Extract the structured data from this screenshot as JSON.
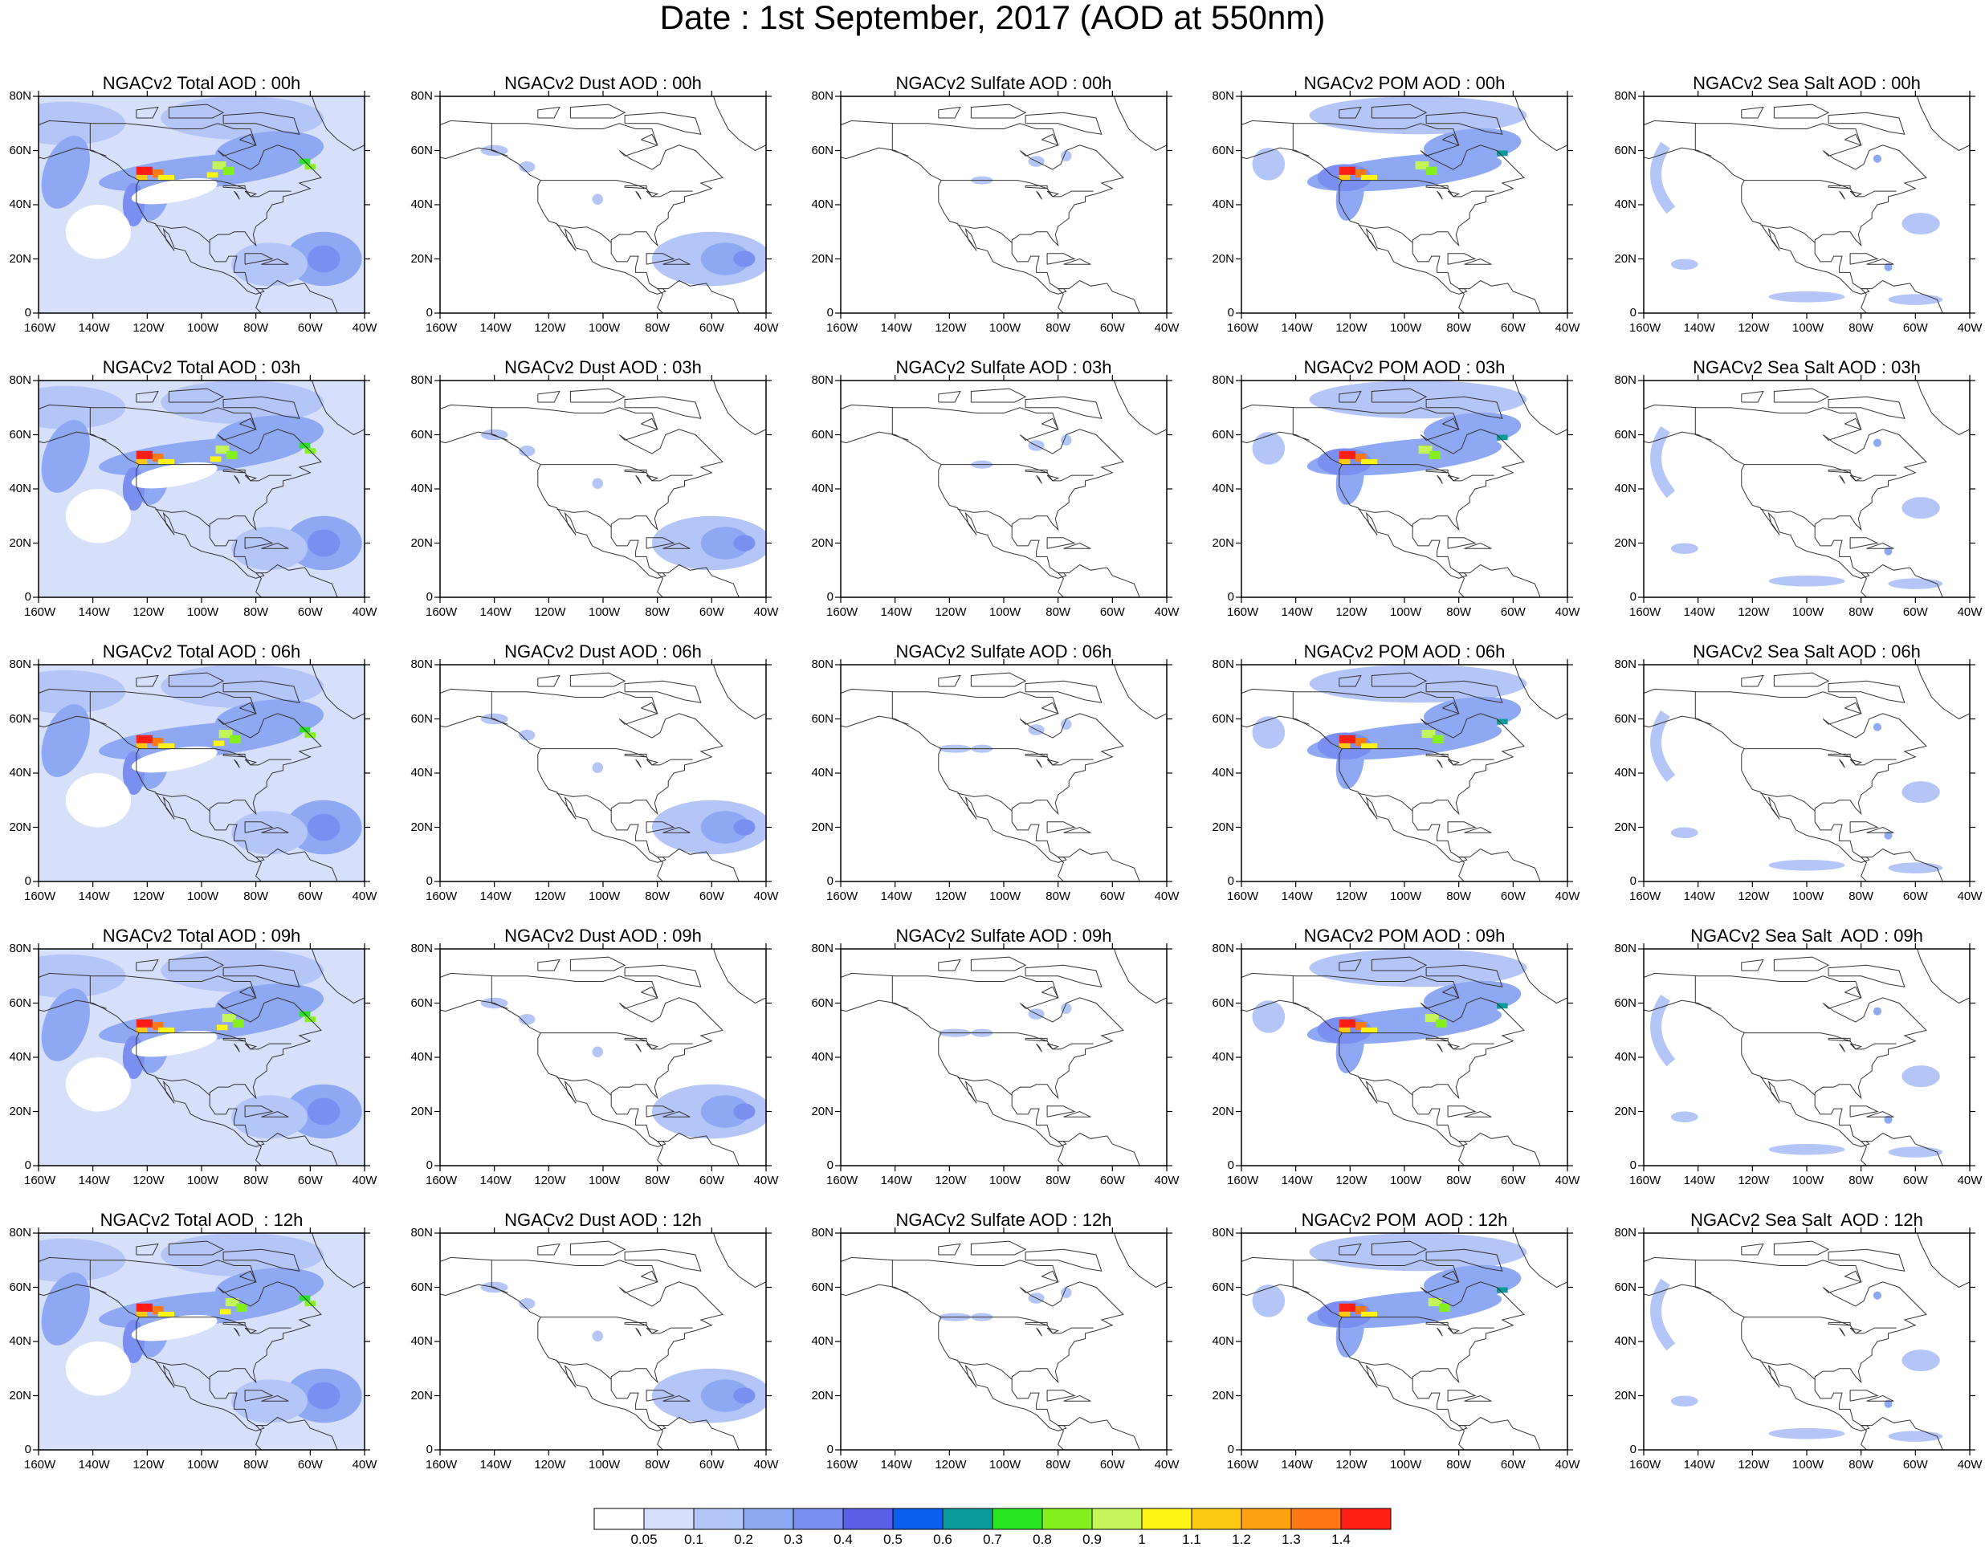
{
  "title": "Date : 1st September, 2017 (AOD at 550nm)",
  "lat_ticks": [
    "80N",
    "60N",
    "40N",
    "20N",
    "0"
  ],
  "lon_ticks": [
    "160W",
    "140W",
    "120W",
    "100W",
    "80W",
    "60W",
    "40W"
  ],
  "rows": [
    {
      "hour": "00h",
      "titles": [
        "NGACv2 Total AOD : 00h",
        "NGACv2 Dust AOD : 00h",
        "NGACv2 Sulfate AOD : 00h",
        "NGACv2 POM AOD : 00h",
        "NGACv2 Sea Salt AOD : 00h"
      ]
    },
    {
      "hour": "03h",
      "titles": [
        "NGACv2 Total AOD : 03h",
        "NGACv2 Dust AOD : 03h",
        "NGACv2 Sulfate AOD : 03h",
        "NGACv2 POM AOD : 03h",
        "NGACv2 Sea Salt AOD : 03h"
      ]
    },
    {
      "hour": "06h",
      "titles": [
        "NGACv2 Total AOD : 06h",
        "NGACv2 Dust AOD : 06h",
        "NGACv2 Sulfate AOD : 06h",
        "NGACv2 POM AOD : 06h",
        "NGACv2 Sea Salt AOD : 06h"
      ]
    },
    {
      "hour": "09h",
      "titles": [
        "NGACv2 Total AOD : 09h",
        "NGACv2 Dust AOD : 09h",
        "NGACv2 Sulfate AOD : 09h",
        "NGACv2 POM AOD : 09h",
        "NGACv2 Sea Salt  AOD : 09h"
      ]
    },
    {
      "hour": "12h",
      "titles": [
        "NGACv2 Total AOD  : 12h",
        "NGACv2 Dust AOD : 12h",
        "NGACv2 Sulfate AOD : 12h",
        "NGACv2 POM  AOD : 12h",
        "NGACv2 Sea Salt  AOD : 12h"
      ]
    }
  ],
  "colorbar": {
    "labels": [
      "0.05",
      "0.1",
      "0.2",
      "0.3",
      "0.4",
      "0.5",
      "0.6",
      "0.7",
      "0.8",
      "0.9",
      "1",
      "1.1",
      "1.2",
      "1.3",
      "1.4"
    ],
    "colors": [
      "#ffffff",
      "#d6e0fb",
      "#b4c5f7",
      "#8fa8f3",
      "#7a8ff0",
      "#5a5ee8",
      "#0a5ef0",
      "#0a9a9a",
      "#28e61e",
      "#86f01e",
      "#c3f55a",
      "#fff514",
      "#ffc814",
      "#ffa00f",
      "#ff7814",
      "#ff1e14"
    ]
  },
  "map_style": {
    "background_haze": "#d6e0fb",
    "light_plume": "#b4c5f7",
    "mid_plume": "#8fa8f3",
    "strong_plume": "#7a8ff0",
    "coast": "#333333"
  }
}
